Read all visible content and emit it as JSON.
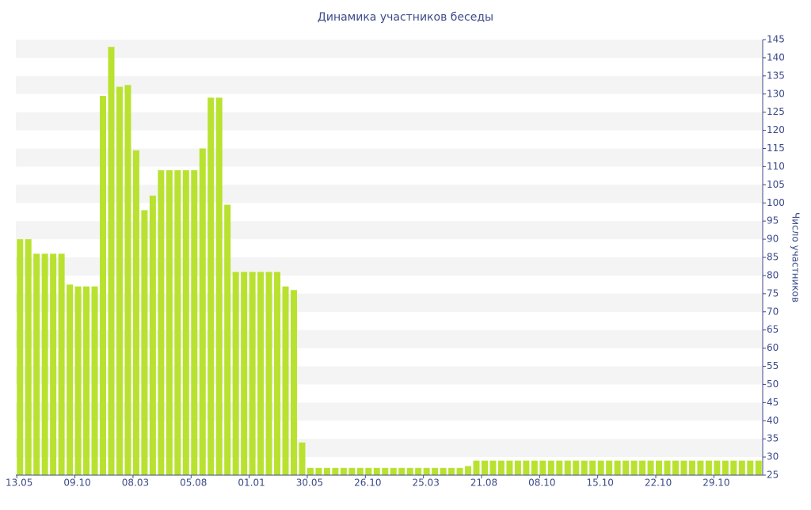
{
  "chart_data": {
    "type": "bar",
    "title": "Динамика участников беседы",
    "y_label": "Число участников",
    "categories": [
      "13.05",
      null,
      null,
      null,
      null,
      null,
      null,
      "09.10",
      null,
      null,
      null,
      null,
      null,
      null,
      "08.03",
      null,
      null,
      null,
      null,
      null,
      null,
      "05.08",
      null,
      null,
      null,
      null,
      null,
      null,
      "01.01",
      null,
      null,
      null,
      null,
      null,
      null,
      "30.05",
      null,
      null,
      null,
      null,
      null,
      null,
      "26.10",
      null,
      null,
      null,
      null,
      null,
      null,
      "25.03",
      null,
      null,
      null,
      null,
      null,
      null,
      "21.08",
      null,
      null,
      null,
      null,
      null,
      null,
      "08.10",
      null,
      null,
      null,
      null,
      null,
      null,
      "15.10",
      null,
      null,
      null,
      null,
      null,
      null,
      "22.10",
      null,
      null,
      null,
      null,
      null,
      null,
      "29.10",
      null,
      null,
      null,
      null,
      null
    ],
    "values": [
      90,
      90,
      86,
      86,
      86,
      86,
      77.5,
      77,
      77,
      77,
      129.5,
      143,
      132,
      132.5,
      114.5,
      98,
      102,
      109,
      109,
      109,
      109,
      109,
      115,
      129,
      129,
      99.5,
      81,
      81,
      81,
      81,
      81,
      81,
      77,
      76,
      34,
      27,
      27,
      27,
      27,
      27,
      27,
      27,
      27,
      27,
      27,
      27,
      27,
      27,
      27,
      27,
      27,
      27,
      27,
      27,
      27.5,
      29,
      29,
      29,
      29,
      29,
      29,
      29,
      29,
      29,
      29,
      29,
      29,
      29,
      29,
      29,
      29,
      29,
      29,
      29,
      29,
      29,
      29,
      29,
      29,
      29,
      29,
      29,
      29,
      29,
      29,
      29,
      29,
      29,
      29,
      29
    ],
    "color": "#b8e22f",
    "ylim": [
      25,
      145
    ],
    "yticks": [
      25,
      30,
      35,
      40,
      45,
      50,
      55,
      60,
      65,
      70,
      75,
      80,
      85,
      90,
      95,
      100,
      105,
      110,
      115,
      120,
      125,
      130,
      135,
      140,
      145
    ],
    "grid": true
  }
}
